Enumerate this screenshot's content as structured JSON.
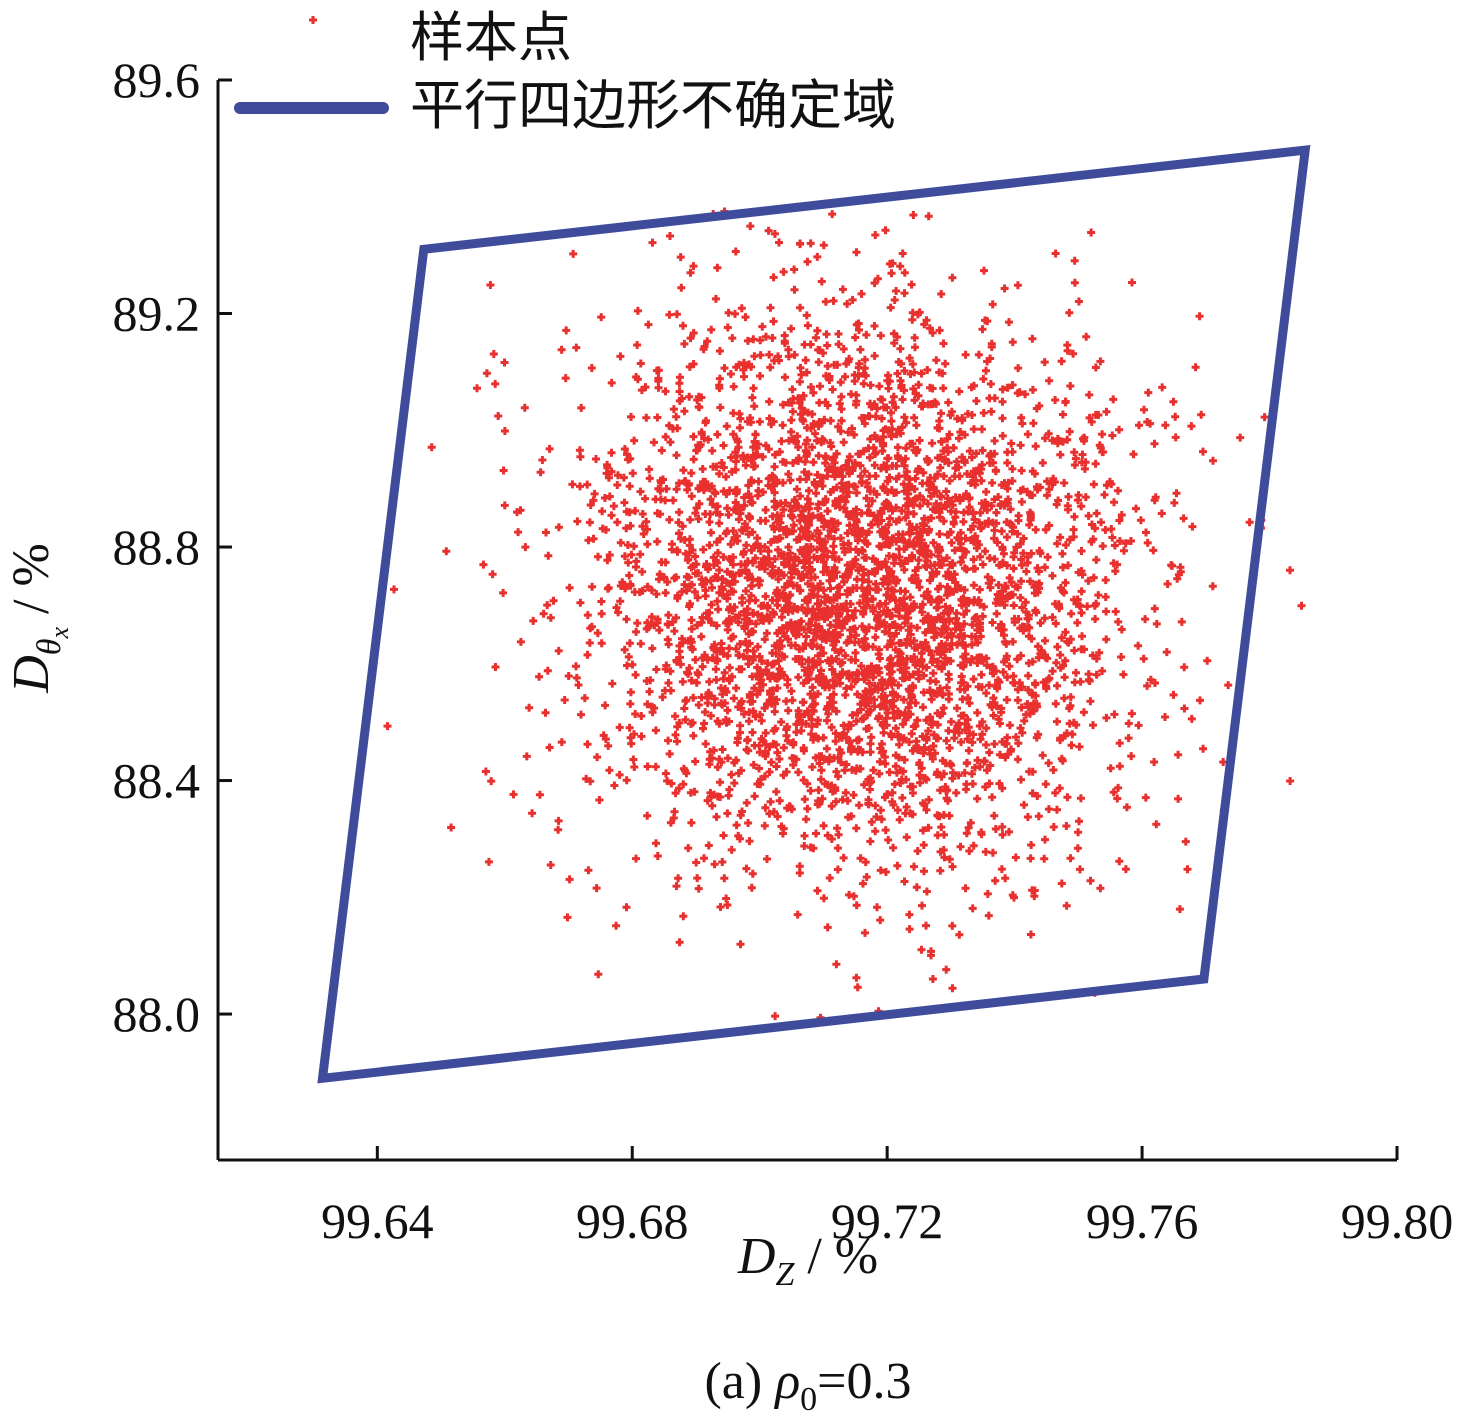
{
  "chart_data": {
    "type": "scatter",
    "caption": {
      "prefix": "(a) ",
      "symbol": "ρ",
      "subscript": "0",
      "suffix": "=0.3"
    },
    "xlabel": {
      "main": "D",
      "subscript": "Z",
      "unit": " / %"
    },
    "ylabel": {
      "main": "D",
      "subscript": "θ",
      "subsubscript": "x",
      "unit": " / %"
    },
    "xlim": [
      99.615,
      99.8
    ],
    "ylim": [
      87.75,
      89.6
    ],
    "x_ticks": [
      99.64,
      99.68,
      99.72,
      99.76,
      99.8
    ],
    "x_tick_labels": [
      "99.64",
      "99.68",
      "99.72",
      "99.76",
      "99.80"
    ],
    "y_ticks": [
      88.0,
      88.4,
      88.8,
      89.2,
      89.6
    ],
    "y_tick_labels": [
      "88.0",
      "88.4",
      "88.8",
      "89.2",
      "89.6"
    ],
    "legend": {
      "position": "top-left",
      "entries": [
        {
          "label": "样本点",
          "marker": "plus",
          "color": "#e8302e"
        },
        {
          "label": "平行四边形不确定域",
          "marker": "line",
          "color": "#3f4c9c"
        }
      ]
    },
    "series": [
      {
        "name": "样本点",
        "kind": "scatter",
        "color": "#e8302e",
        "center": [
          99.716,
          88.72
        ],
        "std": [
          0.0215,
          0.235
        ],
        "count": 3800,
        "x_range": [
          99.631,
          99.786
        ],
        "y_range": [
          87.89,
          89.38
        ]
      },
      {
        "name": "平行四边形不确定域",
        "kind": "polygon",
        "color": "#3f4c9c",
        "points": [
          [
            99.6314,
            87.89
          ],
          [
            99.6473,
            89.31
          ],
          [
            99.7856,
            89.48
          ],
          [
            99.7697,
            88.06
          ]
        ]
      }
    ]
  }
}
